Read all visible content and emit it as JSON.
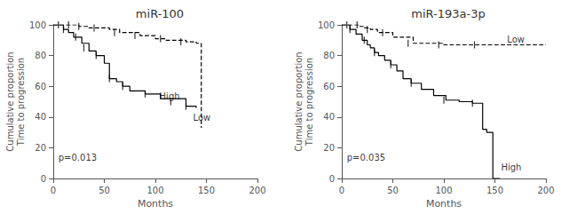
{
  "chart_data": [
    {
      "type": "step",
      "title": "miR-100",
      "xlabel": "Months",
      "ylabel": "Cumulative proportion\nTime to progression",
      "xlim": [
        0,
        200
      ],
      "ylim": [
        0,
        100
      ],
      "xticks": [
        0,
        50,
        100,
        150,
        200
      ],
      "yticks": [
        0,
        20,
        40,
        60,
        80,
        100
      ],
      "grid": false,
      "color": "#000000",
      "series": [
        {
          "type": "step",
          "line_style": "solid",
          "x": [
            0,
            10,
            15,
            20,
            28,
            35,
            42,
            50,
            55,
            62,
            68,
            75,
            90,
            105,
            130,
            140
          ],
          "values": [
            100,
            97,
            95,
            92,
            88,
            83,
            80,
            75,
            65,
            63,
            60,
            57,
            55,
            52,
            47,
            46
          ]
        },
        {
          "type": "step",
          "line_style": "dashed",
          "x": [
            0,
            5,
            10,
            15,
            20,
            25,
            30,
            35,
            55,
            65,
            85,
            100,
            110,
            130,
            140,
            145
          ],
          "values": [
            100,
            100,
            100,
            100,
            100,
            99,
            99,
            98,
            97,
            95,
            93,
            91,
            90,
            89,
            88,
            33
          ]
        },
        {
          "type": "scatter",
          "marker": "vline",
          "x": [
            10,
            22,
            30,
            42,
            55,
            68,
            90,
            115,
            130
          ],
          "values": [
            97,
            92,
            85,
            80,
            65,
            60,
            55,
            50,
            47
          ]
        },
        {
          "type": "scatter",
          "marker": "vline",
          "x": [
            5,
            15,
            25,
            40,
            60,
            80,
            105,
            125
          ],
          "values": [
            100,
            100,
            99,
            98,
            95,
            93,
            91,
            89
          ]
        }
      ],
      "annotations": [
        {
          "text": "p=0.013",
          "x": 5,
          "y": 10
        },
        {
          "text": "High",
          "x": 104,
          "y": 50
        },
        {
          "text": "Low",
          "x": 137,
          "y": 36
        }
      ]
    },
    {
      "type": "step",
      "title": "miR-193a-3p",
      "xlabel": "Months",
      "ylabel": "Cumulative proportion\nTime to progression",
      "xlim": [
        0,
        200
      ],
      "ylim": [
        0,
        100
      ],
      "xticks": [
        0,
        50,
        100,
        150,
        200
      ],
      "yticks": [
        0,
        20,
        40,
        60,
        80,
        100
      ],
      "grid": false,
      "color": "#000000",
      "series": [
        {
          "type": "step",
          "line_style": "solid",
          "x": [
            0,
            8,
            14,
            20,
            25,
            28,
            32,
            36,
            42,
            48,
            54,
            60,
            68,
            78,
            90,
            102,
            115,
            128,
            138,
            142,
            148,
            155
          ],
          "values": [
            100,
            97,
            94,
            90,
            87,
            85,
            82,
            80,
            77,
            74,
            70,
            65,
            62,
            58,
            54,
            51,
            50,
            49,
            32,
            30,
            0,
            0
          ]
        },
        {
          "type": "step",
          "line_style": "dashed",
          "x": [
            0,
            5,
            10,
            14,
            18,
            22,
            28,
            35,
            50,
            70,
            100,
            130,
            160,
            200
          ],
          "values": [
            100,
            100,
            100,
            100,
            99,
            98,
            97,
            95,
            92,
            88,
            87,
            87,
            87,
            87
          ]
        },
        {
          "type": "scatter",
          "marker": "vline",
          "x": [
            8,
            22,
            32,
            48,
            68,
            100,
            128
          ],
          "values": [
            97,
            90,
            82,
            74,
            62,
            51,
            49
          ]
        },
        {
          "type": "scatter",
          "marker": "vline",
          "x": [
            5,
            15,
            25,
            40,
            65,
            95,
            130
          ],
          "values": [
            100,
            100,
            97,
            95,
            88,
            87,
            87
          ]
        }
      ],
      "annotations": [
        {
          "text": "p=0.035",
          "x": 5,
          "y": 10
        },
        {
          "text": "High",
          "x": 156,
          "y": 4
        },
        {
          "text": "Low",
          "x": 162,
          "y": 87
        }
      ]
    }
  ]
}
